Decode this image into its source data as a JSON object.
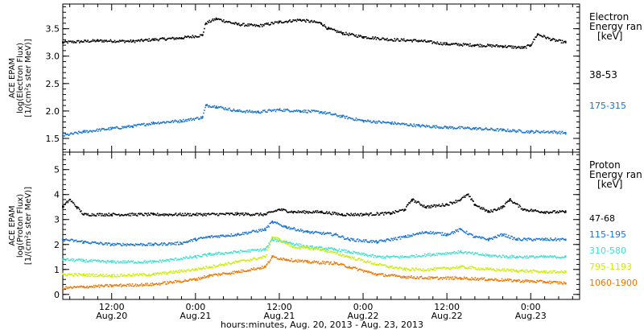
{
  "xlabel": "hours:minutes, Aug. 20, 2013 - Aug. 23, 2013",
  "x_ticks": [
    {
      "time": "12:00",
      "date": "Aug.20",
      "hour": 12
    },
    {
      "time": "0:00",
      "date": "Aug.21",
      "hour": 24
    },
    {
      "time": "12:00",
      "date": "Aug.21",
      "hour": 36
    },
    {
      "time": "0:00",
      "date": "Aug.22",
      "hour": 48
    },
    {
      "time": "12:00",
      "date": "Aug.22",
      "hour": 60
    },
    {
      "time": "0:00",
      "date": "Aug.23",
      "hour": 72
    }
  ],
  "chart_data": [
    {
      "type": "scatter",
      "ylabel_lines": [
        "ACE EPAM",
        "log(Electron Flux)",
        "[1/(cm²s ster MeV)]"
      ],
      "legend_title": [
        "Electron",
        "Energy ran",
        "[keV]"
      ],
      "ylim": [
        1.25,
        3.95
      ],
      "y_ticks": [
        "1.5",
        "2.0",
        "2.5",
        "3.0",
        "3.5"
      ],
      "xlim_hours": [
        5,
        79
      ],
      "series": [
        {
          "name": "38-53",
          "color": "#000000",
          "points": [
            [
              5,
              3.25
            ],
            [
              10,
              3.28
            ],
            [
              15,
              3.27
            ],
            [
              18,
              3.3
            ],
            [
              22,
              3.33
            ],
            [
              25,
              3.38
            ],
            [
              25.5,
              3.6
            ],
            [
              27,
              3.68
            ],
            [
              30,
              3.58
            ],
            [
              33,
              3.55
            ],
            [
              36,
              3.62
            ],
            [
              39,
              3.66
            ],
            [
              42,
              3.6
            ],
            [
              43,
              3.5
            ],
            [
              45,
              3.42
            ],
            [
              48,
              3.35
            ],
            [
              52,
              3.3
            ],
            [
              56,
              3.28
            ],
            [
              60,
              3.22
            ],
            [
              64,
              3.2
            ],
            [
              68,
              3.18
            ],
            [
              71,
              3.15
            ],
            [
              72,
              3.2
            ],
            [
              73,
              3.4
            ],
            [
              75,
              3.3
            ],
            [
              77,
              3.25
            ]
          ]
        },
        {
          "name": "175-315",
          "color": "#1874cd",
          "points": [
            [
              5,
              1.55
            ],
            [
              8,
              1.62
            ],
            [
              12,
              1.68
            ],
            [
              15,
              1.72
            ],
            [
              18,
              1.78
            ],
            [
              22,
              1.82
            ],
            [
              25,
              1.88
            ],
            [
              25.5,
              2.1
            ],
            [
              27,
              2.08
            ],
            [
              30,
              2.0
            ],
            [
              33,
              1.98
            ],
            [
              36,
              2.02
            ],
            [
              39,
              2.0
            ],
            [
              42,
              1.98
            ],
            [
              45,
              1.9
            ],
            [
              48,
              1.82
            ],
            [
              52,
              1.78
            ],
            [
              56,
              1.73
            ],
            [
              60,
              1.7
            ],
            [
              64,
              1.68
            ],
            [
              68,
              1.65
            ],
            [
              72,
              1.62
            ],
            [
              75,
              1.62
            ],
            [
              77,
              1.6
            ]
          ]
        }
      ]
    },
    {
      "type": "scatter",
      "ylabel_lines": [
        "ACE EPAM",
        "log(Proton Flux)",
        "[1/(cm²s ster MeV)]"
      ],
      "legend_title": [
        "Proton",
        "Energy ran",
        "[keV]"
      ],
      "ylim": [
        -0.2,
        5.7
      ],
      "y_ticks": [
        "0",
        "1",
        "2",
        "3",
        "4",
        "5"
      ],
      "xlim_hours": [
        5,
        79
      ],
      "series": [
        {
          "name": "47-68",
          "color": "#000000",
          "points": [
            [
              5,
              3.5
            ],
            [
              6,
              3.8
            ],
            [
              7,
              3.5
            ],
            [
              8,
              3.2
            ],
            [
              12,
              3.2
            ],
            [
              18,
              3.2
            ],
            [
              24,
              3.2
            ],
            [
              30,
              3.22
            ],
            [
              34,
              3.2
            ],
            [
              36,
              3.4
            ],
            [
              38,
              3.3
            ],
            [
              42,
              3.3
            ],
            [
              45,
              3.2
            ],
            [
              48,
              3.2
            ],
            [
              52,
              3.25
            ],
            [
              54,
              3.4
            ],
            [
              55,
              3.8
            ],
            [
              57,
              3.5
            ],
            [
              60,
              3.6
            ],
            [
              62,
              3.8
            ],
            [
              63,
              4.0
            ],
            [
              64,
              3.6
            ],
            [
              66,
              3.3
            ],
            [
              68,
              3.5
            ],
            [
              69,
              3.8
            ],
            [
              71,
              3.4
            ],
            [
              74,
              3.3
            ],
            [
              77,
              3.3
            ]
          ]
        },
        {
          "name": "115-195",
          "color": "#1874cd",
          "points": [
            [
              5,
              2.2
            ],
            [
              8,
              2.1
            ],
            [
              12,
              2.0
            ],
            [
              18,
              2.0
            ],
            [
              22,
              2.05
            ],
            [
              24,
              2.2
            ],
            [
              26,
              2.3
            ],
            [
              30,
              2.4
            ],
            [
              34,
              2.6
            ],
            [
              35,
              2.9
            ],
            [
              37,
              2.7
            ],
            [
              40,
              2.5
            ],
            [
              44,
              2.4
            ],
            [
              46,
              2.2
            ],
            [
              50,
              2.1
            ],
            [
              54,
              2.3
            ],
            [
              57,
              2.5
            ],
            [
              60,
              2.4
            ],
            [
              62,
              2.6
            ],
            [
              64,
              2.3
            ],
            [
              66,
              2.2
            ],
            [
              68,
              2.4
            ],
            [
              70,
              2.2
            ],
            [
              74,
              2.2
            ],
            [
              77,
              2.2
            ]
          ]
        },
        {
          "name": "310-580",
          "color": "#40e0d0",
          "points": [
            [
              5,
              1.4
            ],
            [
              8,
              1.35
            ],
            [
              12,
              1.3
            ],
            [
              18,
              1.3
            ],
            [
              24,
              1.5
            ],
            [
              26,
              1.6
            ],
            [
              30,
              1.7
            ],
            [
              34,
              1.8
            ],
            [
              35,
              2.2
            ],
            [
              37,
              2.1
            ],
            [
              40,
              1.9
            ],
            [
              44,
              1.8
            ],
            [
              46,
              1.7
            ],
            [
              50,
              1.5
            ],
            [
              54,
              1.5
            ],
            [
              58,
              1.6
            ],
            [
              62,
              1.7
            ],
            [
              66,
              1.55
            ],
            [
              70,
              1.5
            ],
            [
              74,
              1.5
            ],
            [
              77,
              1.5
            ]
          ]
        },
        {
          "name": "795-1193",
          "color": "#ccee00",
          "points": [
            [
              5,
              0.8
            ],
            [
              8,
              0.78
            ],
            [
              12,
              0.75
            ],
            [
              18,
              0.8
            ],
            [
              24,
              1.0
            ],
            [
              26,
              1.1
            ],
            [
              30,
              1.3
            ],
            [
              34,
              1.5
            ],
            [
              35,
              2.3
            ],
            [
              36,
              2.2
            ],
            [
              38,
              1.9
            ],
            [
              42,
              1.8
            ],
            [
              46,
              1.5
            ],
            [
              50,
              1.2
            ],
            [
              54,
              1.0
            ],
            [
              58,
              1.0
            ],
            [
              62,
              1.1
            ],
            [
              66,
              1.0
            ],
            [
              70,
              0.95
            ],
            [
              74,
              0.9
            ],
            [
              77,
              0.9
            ]
          ]
        },
        {
          "name": "1060-1900",
          "color": "#ee7600",
          "points": [
            [
              5,
              0.25
            ],
            [
              8,
              0.3
            ],
            [
              12,
              0.35
            ],
            [
              18,
              0.4
            ],
            [
              24,
              0.6
            ],
            [
              26,
              0.75
            ],
            [
              30,
              0.9
            ],
            [
              34,
              1.1
            ],
            [
              35,
              1.5
            ],
            [
              37,
              1.4
            ],
            [
              40,
              1.3
            ],
            [
              44,
              1.25
            ],
            [
              46,
              1.1
            ],
            [
              50,
              0.8
            ],
            [
              54,
              0.7
            ],
            [
              58,
              0.65
            ],
            [
              62,
              0.65
            ],
            [
              66,
              0.6
            ],
            [
              70,
              0.55
            ],
            [
              74,
              0.5
            ],
            [
              77,
              0.45
            ]
          ]
        }
      ]
    }
  ]
}
